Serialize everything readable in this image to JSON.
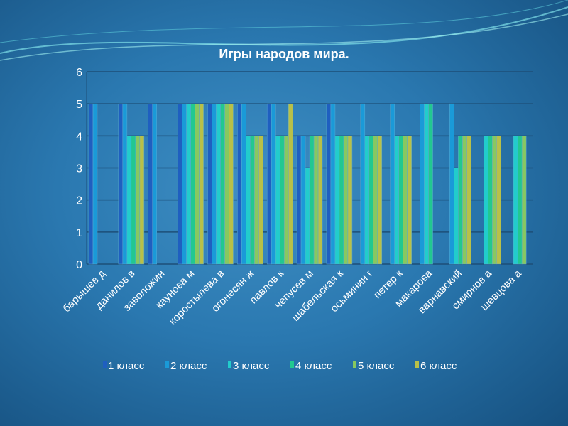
{
  "chart_data": {
    "type": "bar",
    "title": "Игры народов мира.",
    "xlabel": "",
    "ylabel": "",
    "ylim": [
      0,
      6
    ],
    "yticks": [
      "0",
      "1",
      "2",
      "3",
      "4",
      "5",
      "6"
    ],
    "grid": true,
    "legend": "bottom",
    "categories": [
      "барышев д",
      "данилов в",
      "заволожин",
      "каунова м",
      "коростылева в",
      "огонесян ж",
      "павлов к",
      "чепусев м",
      "шабельская к",
      "осьминин г",
      "петер к",
      "макарова",
      "варнавский",
      "смирнов а",
      "шевцова а"
    ],
    "series": [
      {
        "name": "1 класс",
        "color": "#1f5fc0",
        "values": [
          5,
          5,
          5,
          5,
          5,
          5,
          5,
          4,
          5,
          0,
          0,
          0,
          0,
          0,
          0
        ]
      },
      {
        "name": "2 класс",
        "color": "#1a9ad8",
        "values": [
          5,
          5,
          5,
          5,
          5,
          5,
          5,
          4,
          5,
          5,
          5,
          5,
          5,
          0,
          0
        ]
      },
      {
        "name": "3 класс",
        "color": "#22cccc",
        "values": [
          0,
          4,
          0,
          5,
          5,
          4,
          4,
          3,
          4,
          4,
          4,
          5,
          3,
          4,
          4
        ]
      },
      {
        "name": "4 класс",
        "color": "#22c890",
        "values": [
          0,
          4,
          0,
          5,
          5,
          4,
          4,
          4,
          4,
          4,
          4,
          5,
          4,
          4,
          4
        ]
      },
      {
        "name": "5 класс",
        "color": "#88c860",
        "values": [
          0,
          4,
          0,
          5,
          5,
          4,
          4,
          4,
          4,
          4,
          4,
          0,
          4,
          4,
          4
        ]
      },
      {
        "name": "6 класс",
        "color": "#b8c048",
        "values": [
          0,
          4,
          0,
          5,
          5,
          4,
          5,
          4,
          4,
          4,
          4,
          0,
          4,
          4,
          0
        ]
      }
    ]
  }
}
